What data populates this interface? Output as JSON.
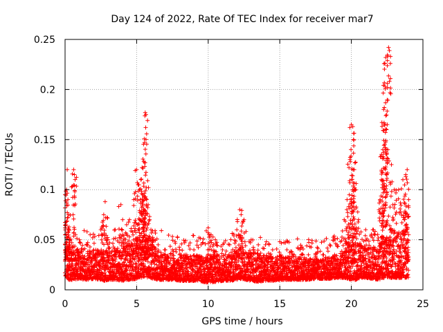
{
  "chart_data": {
    "type": "scatter",
    "title": "Day 124 of 2022, Rate Of TEC Index for receiver mar7",
    "xlabel": "GPS time / hours",
    "ylabel": "ROTI / TECUs",
    "xlim": [
      0,
      25
    ],
    "ylim": [
      0,
      0.25
    ],
    "xticks": [
      0,
      5,
      10,
      15,
      20,
      25
    ],
    "xtick_labels": [
      "0",
      "5",
      "10",
      "15",
      "20",
      "25"
    ],
    "yticks": [
      0,
      0.05,
      0.1,
      0.15,
      0.2,
      0.25
    ],
    "ytick_labels": [
      "0",
      "0.05",
      "0.1",
      "0.15",
      "0.2",
      "0.25"
    ],
    "grid": true,
    "marker": "+",
    "color": "#ff0000",
    "series": [
      {
        "name": "ROTI",
        "x": [
          0.05,
          0.1,
          0.15,
          0.2,
          0.25,
          0.3,
          0.6,
          0.65,
          0.1,
          0.2,
          1.0,
          1.5,
          2.0,
          2.5,
          2.7,
          2.8,
          3.0,
          3.5,
          3.9,
          4.0,
          4.3,
          4.5,
          4.8,
          5.0,
          5.1,
          5.2,
          5.3,
          5.4,
          5.5,
          5.55,
          5.6,
          5.65,
          5.7,
          5.8,
          5.9,
          6.0,
          6.2,
          6.5,
          7.0,
          7.5,
          8.0,
          8.5,
          9.0,
          9.5,
          10.0,
          10.2,
          10.5,
          11.0,
          11.5,
          12.0,
          12.2,
          12.3,
          12.5,
          13.0,
          13.5,
          14.0,
          14.5,
          15.0,
          15.5,
          16.0,
          16.5,
          17.0,
          17.5,
          18.0,
          18.5,
          19.0,
          19.5,
          19.7,
          19.9,
          20.0,
          20.1,
          20.15,
          20.2,
          20.3,
          20.5,
          21.0,
          21.5,
          22.0,
          22.1,
          22.2,
          22.25,
          22.3,
          22.35,
          22.4,
          22.6,
          22.8,
          23.0,
          23.3,
          23.6,
          23.8,
          23.9,
          24.0
        ],
        "y": [
          0.065,
          0.1,
          0.12,
          0.09,
          0.075,
          0.05,
          0.12,
          0.115,
          0.04,
          0.03,
          0.05,
          0.045,
          0.04,
          0.06,
          0.075,
          0.088,
          0.05,
          0.06,
          0.085,
          0.055,
          0.065,
          0.07,
          0.09,
          0.12,
          0.105,
          0.1,
          0.11,
          0.095,
          0.128,
          0.147,
          0.177,
          0.175,
          0.09,
          0.085,
          0.07,
          0.06,
          0.05,
          0.045,
          0.04,
          0.04,
          0.04,
          0.035,
          0.04,
          0.045,
          0.062,
          0.055,
          0.05,
          0.04,
          0.045,
          0.06,
          0.08,
          0.075,
          0.07,
          0.05,
          0.045,
          0.045,
          0.04,
          0.048,
          0.04,
          0.035,
          0.035,
          0.035,
          0.035,
          0.035,
          0.045,
          0.045,
          0.07,
          0.09,
          0.13,
          0.165,
          0.163,
          0.15,
          0.12,
          0.1,
          0.07,
          0.06,
          0.06,
          0.09,
          0.11,
          0.14,
          0.137,
          0.182,
          0.203,
          0.232,
          0.242,
          0.125,
          0.1,
          0.1,
          0.11,
          0.115,
          0.12,
          0.09
        ]
      }
    ],
    "envelope": {
      "x": [
        0,
        0.3,
        0.6,
        1,
        1.5,
        2,
        2.5,
        2.8,
        3,
        3.5,
        4,
        4.5,
        5,
        5.3,
        5.6,
        5.9,
        6.2,
        6.6,
        7,
        7.5,
        8,
        8.5,
        9,
        9.5,
        10,
        10.5,
        11,
        11.5,
        12,
        12.3,
        12.6,
        13,
        13.5,
        14,
        14.5,
        15,
        15.5,
        16,
        16.5,
        17,
        17.5,
        18,
        18.5,
        19,
        19.5,
        19.8,
        20,
        20.3,
        20.6,
        21,
        21.5,
        22,
        22.3,
        22.6,
        23,
        23.5,
        24
      ],
      "base_low": [
        0.012,
        0.01,
        0.01,
        0.011,
        0.01,
        0.011,
        0.01,
        0.009,
        0.01,
        0.01,
        0.009,
        0.01,
        0.011,
        0.012,
        0.013,
        0.012,
        0.011,
        0.01,
        0.01,
        0.01,
        0.009,
        0.009,
        0.009,
        0.008,
        0.007,
        0.008,
        0.009,
        0.009,
        0.01,
        0.011,
        0.01,
        0.009,
        0.008,
        0.009,
        0.009,
        0.01,
        0.01,
        0.01,
        0.01,
        0.01,
        0.011,
        0.011,
        0.011,
        0.012,
        0.012,
        0.011,
        0.01,
        0.01,
        0.012,
        0.012,
        0.011,
        0.01,
        0.012,
        0.012,
        0.012,
        0.012,
        0.012
      ],
      "base_high": [
        0.045,
        0.05,
        0.045,
        0.042,
        0.04,
        0.04,
        0.04,
        0.045,
        0.042,
        0.04,
        0.042,
        0.048,
        0.05,
        0.055,
        0.055,
        0.05,
        0.045,
        0.04,
        0.038,
        0.036,
        0.035,
        0.035,
        0.035,
        0.034,
        0.033,
        0.035,
        0.035,
        0.036,
        0.04,
        0.045,
        0.04,
        0.038,
        0.036,
        0.035,
        0.034,
        0.034,
        0.034,
        0.033,
        0.032,
        0.032,
        0.032,
        0.032,
        0.033,
        0.036,
        0.04,
        0.045,
        0.05,
        0.048,
        0.045,
        0.042,
        0.043,
        0.048,
        0.055,
        0.05,
        0.055,
        0.06,
        0.065
      ]
    }
  }
}
